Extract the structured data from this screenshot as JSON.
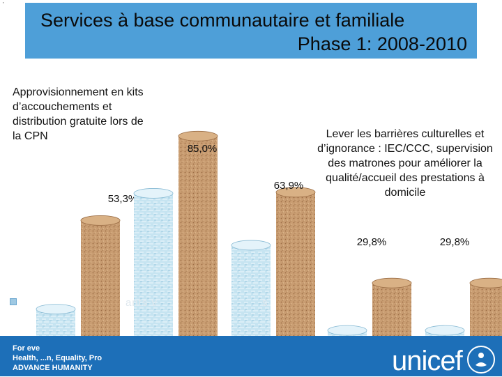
{
  "header": {
    "title_line1": "Services à base communautaire et familiale",
    "title_line2": "Phase 1: 2008-2010"
  },
  "annotations": {
    "left": "Approvisionnement en kits d’accouchements et distribution gratuite lors de la CPN",
    "right": "Lever les barrières culturelles et d’ignorance : IEC/CCC, supervision des matrones pour améliorer la qualité/accueil des prestations à domicile",
    "partial_left": "ants v",
    "partial_right": "s"
  },
  "footer": {
    "line1": "For eve",
    "line2": "Health, ...n, Equality, Pro",
    "line3": "ADVANCE HUMANITY",
    "logo": "unicef"
  },
  "colors": {
    "title_bg": "#4e9fd8",
    "cork": "#c99d72",
    "cork_dark": "#a97a50",
    "light_bar": "#bfe0ee",
    "footer_bg": "#1d6fb8"
  },
  "chart_data": {
    "type": "bar",
    "title": "",
    "xlabel": "",
    "ylabel": "",
    "ylim": [
      0,
      100
    ],
    "groups": [
      {
        "name": "",
        "values": [
          20,
          53.3
        ]
      },
      {
        "name": "",
        "values": [
          63.5,
          85.0
        ]
      },
      {
        "name": "",
        "values": [
          44,
          63.9
        ]
      },
      {
        "name": "",
        "values": [
          12,
          29.8
        ]
      },
      {
        "name": "",
        "values": [
          12,
          29.8
        ]
      }
    ],
    "series": [
      {
        "name": "",
        "style": "light-patterned"
      },
      {
        "name": "",
        "style": "cork"
      }
    ],
    "data_labels": [
      "53,3%",
      "85,0%",
      "63,9%",
      "29,8%",
      "29,8%"
    ]
  }
}
